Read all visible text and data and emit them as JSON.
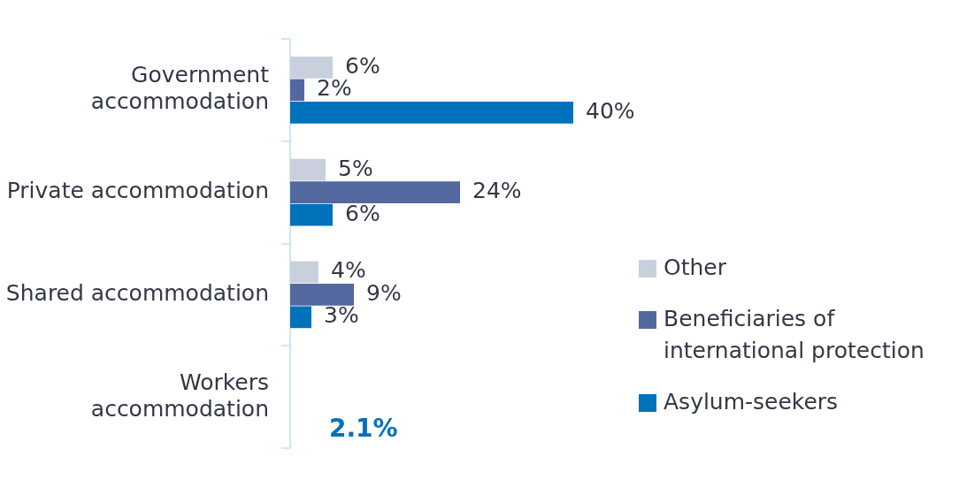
{
  "chart_data": {
    "type": "bar",
    "orientation": "horizontal",
    "categories": [
      "Government accommodation",
      "Private accommodation",
      "Shared accommodation",
      "Workers accommodation"
    ],
    "legend": "right",
    "grid": false,
    "tick_labels": "y",
    "series": [
      {
        "name": "Other",
        "color": "#c9d0dd",
        "values": [
          6,
          5,
          4,
          null
        ],
        "value_labels": [
          "6%",
          "5%",
          "4%",
          null
        ]
      },
      {
        "name": "Beneficiaries of international protection",
        "color": "#5468a0",
        "values": [
          2,
          24,
          9,
          null
        ],
        "value_labels": [
          "2%",
          "24%",
          "9%",
          null
        ]
      },
      {
        "name": "Asylum-seekers",
        "color": "#0072bc",
        "values": [
          40,
          6,
          3,
          null
        ],
        "value_labels": [
          "40%",
          "6%",
          "3%",
          null
        ]
      }
    ],
    "annotations": [
      "2.1%"
    ]
  }
}
